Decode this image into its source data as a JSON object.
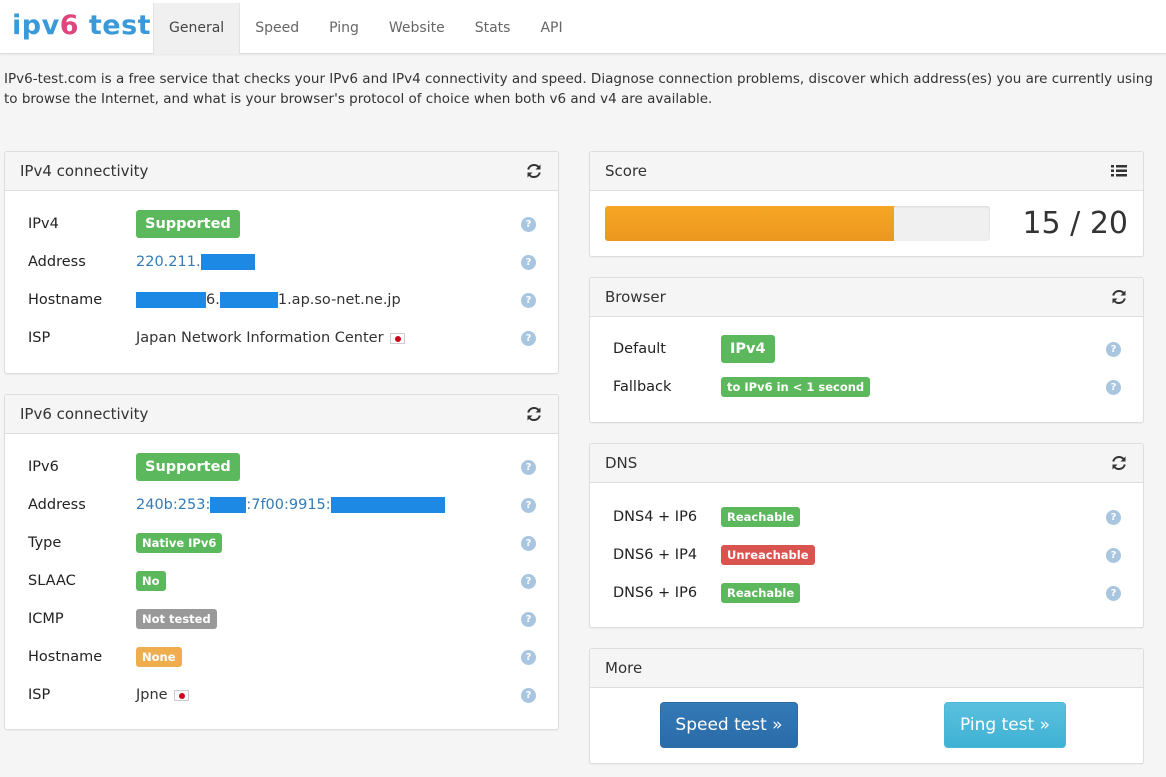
{
  "brand": {
    "part1": "ipv",
    "part2": "6",
    "part3": " test"
  },
  "nav": {
    "tabs": [
      {
        "label": "General",
        "active": true
      },
      {
        "label": "Speed"
      },
      {
        "label": "Ping"
      },
      {
        "label": "Website"
      },
      {
        "label": "Stats"
      },
      {
        "label": "API"
      }
    ]
  },
  "intro": "IPv6-test.com is a free service that checks your IPv6 and IPv4 connectivity and speed. Diagnose connection problems, discover which address(es) you are currently using to browse the Internet, and what is your browser's protocol of choice when both v6 and v4 are available.",
  "ipv4": {
    "title": "IPv4 connectivity",
    "labels": {
      "ipv4": "IPv4",
      "address": "Address",
      "hostname": "Hostname",
      "isp": "ISP"
    },
    "status": "Supported",
    "address_prefix": "220.211.",
    "hostname_mid": "6.",
    "hostname_suffix": "1.ap.so-net.ne.jp",
    "isp": "Japan Network Information Center"
  },
  "ipv6": {
    "title": "IPv6 connectivity",
    "labels": {
      "ipv6": "IPv6",
      "address": "Address",
      "type": "Type",
      "slaac": "SLAAC",
      "icmp": "ICMP",
      "hostname": "Hostname",
      "isp": "ISP"
    },
    "status": "Supported",
    "address_prefix": "240b:253:",
    "address_mid": ":7f00:9915:",
    "type": "Native IPv6",
    "slaac": "No",
    "icmp": "Not tested",
    "hostname": "None",
    "isp": "Jpne"
  },
  "score": {
    "title": "Score",
    "value": 15,
    "max": 20,
    "text": "15 / 20",
    "bar_color": "#f0a02a"
  },
  "browser": {
    "title": "Browser",
    "default_label": "Default",
    "default_value": "IPv4",
    "fallback_label": "Fallback",
    "fallback_value": "to IPv6 in < 1 second"
  },
  "dns": {
    "title": "DNS",
    "rows": [
      {
        "label": "DNS4 + IP6",
        "status": "Reachable"
      },
      {
        "label": "DNS6 + IP4",
        "status": "Unreachable"
      },
      {
        "label": "DNS6 + IP6",
        "status": "Reachable"
      }
    ]
  },
  "more": {
    "title": "More",
    "speed_button": "Speed test »",
    "ping_button": "Ping test »"
  },
  "help_glyph": "?",
  "colors": {
    "supported": "#5cb85c",
    "unreachable": "#d9534f",
    "not_tested": "#999999",
    "none": "#f0ad4e",
    "link": "#337ab7"
  }
}
